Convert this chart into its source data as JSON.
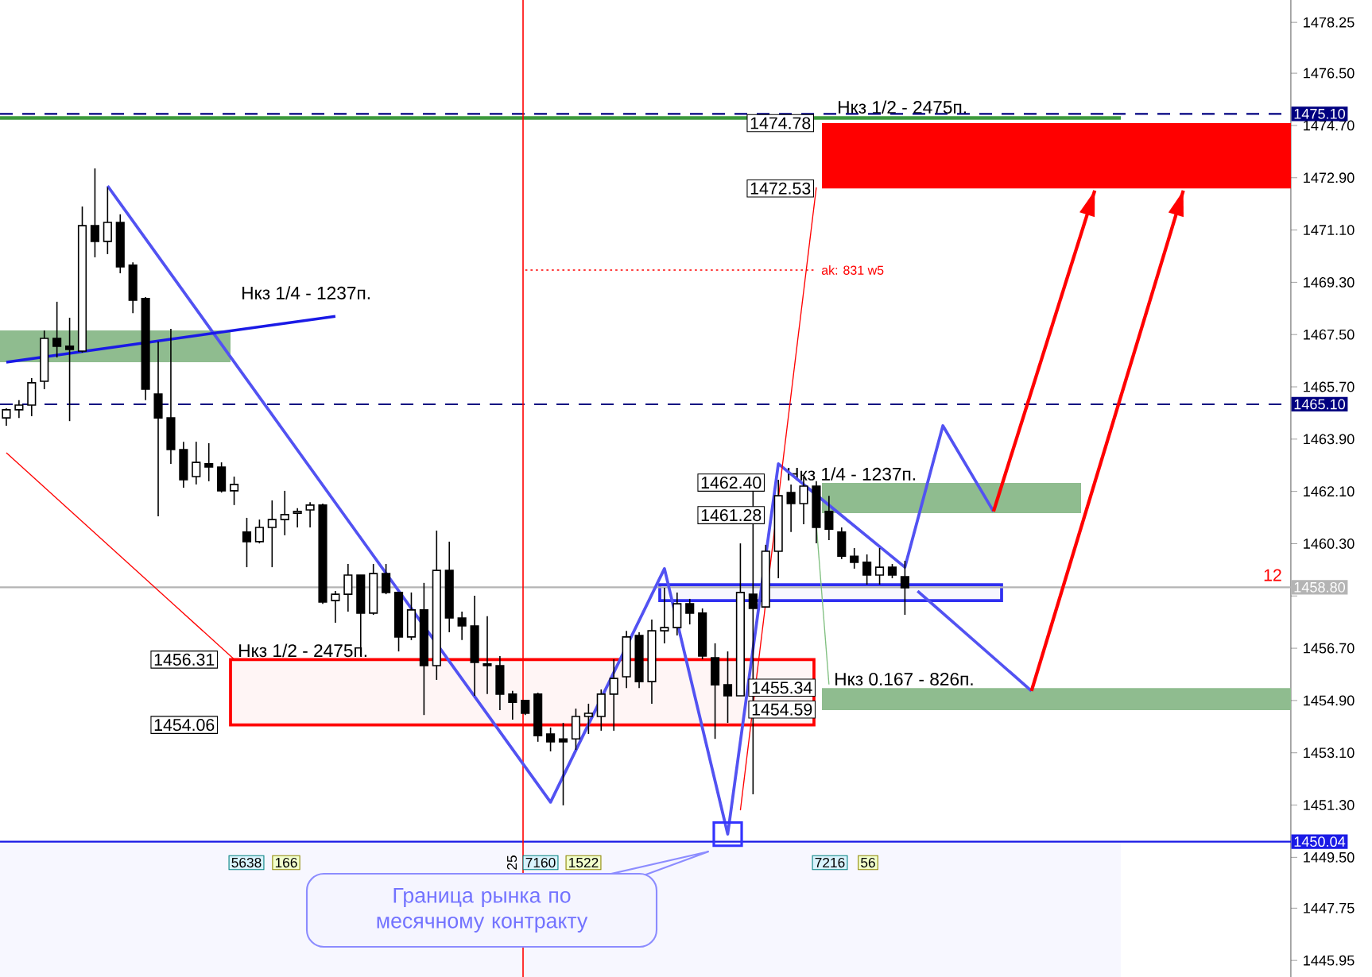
{
  "chart_data": {
    "type": "candlestick",
    "categories": [
      null,
      null,
      null,
      null,
      null,
      null,
      null,
      null,
      null,
      null,
      null,
      null,
      null,
      null,
      null,
      null,
      null,
      null,
      null,
      null,
      null,
      null,
      null,
      null,
      null,
      null,
      null,
      null,
      null,
      null,
      null,
      null,
      null,
      null,
      null,
      null,
      null,
      null,
      null,
      null,
      null,
      null,
      null,
      null,
      null,
      null,
      null,
      null,
      null,
      null,
      null,
      null,
      null,
      null,
      null,
      null,
      null,
      null,
      null,
      null,
      null,
      null,
      null,
      null,
      null,
      null,
      null,
      null,
      null,
      null,
      null,
      null,
      null,
      null,
      null,
      null,
      null,
      null,
      null,
      null,
      null,
      null,
      null,
      null,
      null,
      null,
      null,
      null,
      null,
      null,
      null,
      null,
      null,
      null,
      null,
      null,
      null,
      null,
      null,
      null,
      null,
      null
    ],
    "ohlc": [
      [
        1464.63,
        1464.96,
        1464.36,
        1464.91
      ],
      [
        1464.91,
        1465.24,
        1464.63,
        1465.07
      ],
      [
        1465.07,
        1466.0,
        1464.69,
        1465.84
      ],
      [
        1465.89,
        1467.64,
        1465.62,
        1467.37
      ],
      [
        1467.37,
        1468.63,
        1466.71,
        1467.1
      ],
      [
        1467.1,
        1468.08,
        1464.52,
        1466.99
      ],
      [
        1466.93,
        1471.91,
        1466.88,
        1471.25
      ],
      [
        1471.25,
        1473.22,
        1470.16,
        1470.71
      ],
      [
        1470.71,
        1472.57,
        1470.27,
        1471.36
      ],
      [
        1471.36,
        1471.64,
        1469.61,
        1469.83
      ],
      [
        1469.89,
        1469.99,
        1468.24,
        1468.68
      ],
      [
        1468.74,
        1468.79,
        1465.24,
        1465.62
      ],
      [
        1465.45,
        1467.26,
        1461.24,
        1464.63
      ],
      [
        1464.63,
        1467.7,
        1463.05,
        1463.54
      ],
      [
        1463.54,
        1463.81,
        1462.23,
        1462.5
      ],
      [
        1462.61,
        1463.81,
        1462.34,
        1463.1
      ],
      [
        1463.05,
        1463.76,
        1462.45,
        1462.94
      ],
      [
        1462.94,
        1463.1,
        1462.06,
        1462.12
      ],
      [
        1462.12,
        1462.61,
        1461.63,
        1462.34
      ],
      [
        1460.7,
        1461.19,
        1459.49,
        1460.37
      ],
      [
        1460.37,
        1461.13,
        1460.31,
        1460.86
      ],
      [
        1460.86,
        1461.79,
        1459.49,
        1461.13
      ],
      [
        1461.13,
        1462.12,
        1460.59,
        1461.3
      ],
      [
        1461.35,
        1461.52,
        1460.86,
        1461.41
      ],
      [
        1461.46,
        1461.73,
        1460.86,
        1461.63
      ],
      [
        1461.63,
        1461.68,
        1458.23,
        1458.29
      ],
      [
        1458.34,
        1458.67,
        1457.58,
        1458.56
      ],
      [
        1458.56,
        1459.6,
        1457.96,
        1459.22
      ],
      [
        1459.22,
        1459.22,
        1456.43,
        1457.91
      ],
      [
        1457.91,
        1459.6,
        1457.85,
        1459.27
      ],
      [
        1459.27,
        1459.6,
        1458.56,
        1458.62
      ],
      [
        1458.62,
        1458.62,
        1456.59,
        1457.09
      ],
      [
        1457.09,
        1458.62,
        1456.98,
        1458.02
      ],
      [
        1458.02,
        1458.95,
        1454.4,
        1456.1
      ],
      [
        1456.1,
        1460.75,
        1455.61,
        1459.38
      ],
      [
        1459.38,
        1460.37,
        1457.25,
        1457.74
      ],
      [
        1457.74,
        1457.96,
        1456.98,
        1457.47
      ],
      [
        1457.47,
        1458.51,
        1455.06,
        1456.21
      ],
      [
        1456.16,
        1457.8,
        1455.12,
        1456.1
      ],
      [
        1456.1,
        1456.43,
        1454.57,
        1455.12
      ],
      [
        1455.12,
        1455.23,
        1454.24,
        1454.84
      ],
      [
        1454.9,
        1454.9,
        1454.4,
        1454.46
      ],
      [
        1455.12,
        1455.17,
        1453.48,
        1453.69
      ],
      [
        1453.75,
        1453.97,
        1453.15,
        1453.48
      ],
      [
        1453.58,
        1454.13,
        1451.29,
        1453.48
      ],
      [
        1453.58,
        1454.62,
        1453.2,
        1454.35
      ],
      [
        1454.35,
        1454.79,
        1453.75,
        1454.46
      ],
      [
        1454.35,
        1455.28,
        1453.86,
        1455.12
      ],
      [
        1455.12,
        1456.32,
        1453.86,
        1455.66
      ],
      [
        1455.72,
        1457.3,
        1455.33,
        1457.09
      ],
      [
        1457.14,
        1457.25,
        1455.33,
        1455.55
      ],
      [
        1455.55,
        1457.69,
        1454.79,
        1457.3
      ],
      [
        1457.3,
        1458.78,
        1456.87,
        1457.41
      ],
      [
        1457.41,
        1458.62,
        1457.14,
        1458.23
      ],
      [
        1458.23,
        1458.4,
        1457.52,
        1457.91
      ],
      [
        1457.91,
        1458.07,
        1456.32,
        1456.43
      ],
      [
        1456.37,
        1456.87,
        1453.58,
        1455.44
      ],
      [
        1455.44,
        1456.59,
        1454.13,
        1455.06
      ],
      [
        1455.06,
        1460.31,
        1455.06,
        1458.62
      ],
      [
        1458.56,
        1462.34,
        1451.67,
        1458.07
      ],
      [
        1458.12,
        1460.26,
        1458.12,
        1460.04
      ],
      [
        1460.04,
        1462.5,
        1459.11,
        1461.95
      ],
      [
        1462.06,
        1462.34,
        1460.7,
        1461.68
      ],
      [
        1461.68,
        1462.61,
        1460.97,
        1462.28
      ],
      [
        1462.28,
        1462.45,
        1460.31,
        1460.86
      ],
      [
        1461.41,
        1461.95,
        1460.42,
        1460.8
      ],
      [
        1460.7,
        1460.86,
        1459.77,
        1459.87
      ],
      [
        1459.87,
        1460.15,
        1459.44,
        1459.66
      ],
      [
        1459.66,
        1459.93,
        1458.89,
        1459.22
      ],
      [
        1459.22,
        1460.15,
        1458.89,
        1459.49
      ],
      [
        1459.49,
        1459.6,
        1459.11,
        1459.22
      ],
      [
        1459.16,
        1459.71,
        1457.85,
        1458.78
      ],
      null,
      null,
      null,
      null,
      null,
      null,
      null,
      null,
      null,
      null,
      null,
      null,
      null,
      null,
      null,
      null,
      null,
      null,
      null,
      null,
      null,
      null,
      null,
      null,
      null,
      null,
      null,
      null,
      null,
      null
    ],
    "ylim": [
      1445.38,
      1479.02
    ],
    "yticks": [
      {
        "value": 1478.25,
        "label": "1478.25"
      },
      {
        "value": 1476.5,
        "label": "1476.50"
      },
      {
        "value": 1474.7,
        "label": "1474.70"
      },
      {
        "value": 1472.9,
        "label": "1472.90"
      },
      {
        "value": 1471.1,
        "label": "1471.10"
      },
      {
        "value": 1469.3,
        "label": "1469.30"
      },
      {
        "value": 1467.5,
        "label": "1467.50"
      },
      {
        "value": 1465.7,
        "label": "1465.70"
      },
      {
        "value": 1463.9,
        "label": "1463.90"
      },
      {
        "value": 1462.1,
        "label": "1462.10"
      },
      {
        "value": 1460.3,
        "label": "1460.30"
      },
      {
        "value": 1458.5,
        "label": null
      },
      {
        "value": 1456.7,
        "label": "1456.70"
      },
      {
        "value": 1454.9,
        "label": "1454.90"
      },
      {
        "value": 1453.1,
        "label": "1453.10"
      },
      {
        "value": 1451.3,
        "label": "1451.30"
      },
      {
        "value": 1449.5,
        "label": "1449.50"
      },
      {
        "value": 1447.75,
        "label": "1447.75"
      },
      {
        "value": 1445.95,
        "label": "1445.95"
      }
    ],
    "tick_labels": "y",
    "series": [
      {
        "type": "line",
        "color": "#5252f2",
        "values": [
          null,
          null,
          null,
          null,
          null,
          null,
          null,
          null,
          1472.62,
          null,
          null,
          null,
          null,
          null,
          null,
          null,
          null,
          null,
          null,
          null,
          null,
          null,
          null,
          null,
          null,
          null,
          null,
          null,
          null,
          null,
          null,
          null,
          null,
          null,
          null,
          null,
          null,
          null,
          null,
          null,
          null,
          null,
          null,
          1451.4,
          null,
          null,
          null,
          null,
          null,
          null,
          null,
          null,
          1459.44,
          null,
          null,
          null,
          null,
          1450.3,
          null,
          null,
          null,
          1463.05,
          null,
          null,
          null,
          null,
          null,
          null,
          null,
          null,
          null,
          1459.49,
          null,
          null,
          1464.36,
          null,
          null,
          null,
          1461.41,
          null,
          null,
          null,
          null,
          null,
          null,
          null,
          null,
          null,
          null,
          null,
          null,
          null,
          null,
          null,
          null,
          null,
          null,
          null,
          null,
          null,
          null,
          null
        ]
      },
      {
        "type": "line",
        "color": "#5252f2",
        "values": [
          null,
          null,
          null,
          null,
          null,
          null,
          null,
          null,
          null,
          null,
          null,
          null,
          null,
          null,
          null,
          null,
          null,
          null,
          null,
          null,
          null,
          null,
          null,
          null,
          null,
          null,
          null,
          null,
          null,
          null,
          null,
          null,
          null,
          null,
          null,
          null,
          null,
          null,
          null,
          null,
          null,
          null,
          null,
          null,
          null,
          null,
          null,
          null,
          null,
          null,
          null,
          null,
          null,
          null,
          null,
          null,
          null,
          null,
          null,
          null,
          null,
          null,
          null,
          null,
          null,
          null,
          null,
          null,
          null,
          null,
          null,
          null,
          1458.67,
          null,
          null,
          null,
          null,
          null,
          null,
          null,
          null,
          1455.23,
          null,
          null,
          null,
          null,
          null,
          null,
          null,
          null,
          null,
          null,
          null,
          null,
          null,
          null,
          null,
          null,
          null,
          null,
          null,
          null
        ]
      },
      {
        "type": "line",
        "color": "#1a1ae6",
        "values": [
          1466.55,
          null,
          null,
          null,
          null,
          null,
          null,
          null,
          null,
          null,
          null,
          null,
          null,
          null,
          null,
          null,
          null,
          null,
          null,
          null,
          null,
          null,
          null,
          null,
          null,
          null,
          1468.13,
          null,
          null,
          null,
          null,
          null,
          null,
          null,
          null,
          null,
          null,
          null,
          null,
          null,
          null,
          null,
          null,
          null,
          null,
          null,
          null,
          null,
          null,
          null,
          null,
          null,
          null,
          null,
          null,
          null,
          null,
          null,
          null,
          null,
          null,
          null,
          null,
          null,
          null,
          null,
          null,
          null,
          null,
          null,
          null,
          null,
          null,
          null,
          null,
          null,
          null,
          null,
          null,
          null,
          null,
          null,
          null,
          null,
          null,
          null,
          null,
          null,
          null,
          null,
          null,
          null,
          null,
          null,
          null,
          null,
          null,
          null,
          null,
          null,
          null,
          null
        ]
      },
      {
        "type": "line",
        "color": "#ff0000",
        "values": [
          1463.43,
          null,
          null,
          null,
          null,
          null,
          null,
          null,
          null,
          null,
          null,
          null,
          null,
          null,
          null,
          null,
          null,
          null,
          1456.32,
          null,
          null,
          null,
          null,
          null,
          null,
          null,
          null,
          null,
          null,
          null,
          null,
          null,
          null,
          null,
          null,
          null,
          null,
          null,
          null,
          null,
          null,
          null,
          null,
          null,
          null,
          null,
          null,
          null,
          null,
          null,
          null,
          null,
          null,
          null,
          null,
          null,
          null,
          null,
          null,
          null,
          null,
          null,
          null,
          null,
          null,
          null,
          null,
          null,
          null,
          null,
          null,
          null,
          null,
          null,
          null,
          null,
          null,
          null,
          null,
          null,
          null,
          null,
          null,
          null,
          null,
          null,
          null,
          null,
          null,
          null,
          null,
          null,
          null,
          null,
          null,
          null,
          null,
          null,
          null,
          null,
          null,
          null
        ]
      },
      {
        "type": "line",
        "color": "#ff0000",
        "values": [
          null,
          null,
          null,
          null,
          null,
          null,
          null,
          null,
          null,
          null,
          null,
          null,
          null,
          null,
          null,
          null,
          null,
          null,
          null,
          null,
          null,
          null,
          null,
          null,
          null,
          null,
          null,
          null,
          null,
          null,
          null,
          null,
          null,
          null,
          null,
          null,
          null,
          null,
          null,
          null,
          null,
          null,
          null,
          null,
          null,
          null,
          null,
          null,
          null,
          null,
          null,
          null,
          null,
          null,
          null,
          null,
          null,
          null,
          1451.12,
          null,
          null,
          null,
          null,
          null,
          1472.57,
          null,
          null,
          null,
          null,
          null,
          null,
          null,
          null,
          null,
          null,
          null,
          null,
          null,
          null,
          null,
          null,
          null,
          null,
          null,
          null,
          null,
          null,
          null,
          null,
          null,
          null,
          null,
          null,
          null,
          null,
          null,
          null,
          null,
          null,
          null,
          null,
          null
        ]
      },
      {
        "type": "line",
        "color": "#80c080",
        "values": [
          null,
          null,
          null,
          null,
          null,
          null,
          null,
          null,
          null,
          null,
          null,
          null,
          null,
          null,
          null,
          null,
          null,
          null,
          null,
          null,
          null,
          null,
          null,
          null,
          null,
          null,
          null,
          null,
          null,
          null,
          null,
          null,
          null,
          null,
          null,
          null,
          null,
          null,
          null,
          null,
          null,
          null,
          null,
          null,
          null,
          null,
          null,
          null,
          null,
          null,
          null,
          null,
          null,
          null,
          null,
          null,
          null,
          null,
          null,
          null,
          null,
          null,
          null,
          null,
          1460.97,
          1455.45,
          null,
          null,
          null,
          null,
          null,
          null,
          null,
          null,
          null,
          null,
          null,
          null,
          null,
          null,
          null,
          null,
          null,
          null,
          null,
          null,
          null,
          null,
          null,
          null,
          null,
          null,
          null,
          null,
          null,
          null,
          null,
          null,
          null,
          null,
          null,
          null
        ]
      },
      {
        "type": "line",
        "color": "#ff0000",
        "line_style": "dotted",
        "values": [
          null,
          null,
          null,
          null,
          null,
          null,
          null,
          null,
          null,
          null,
          null,
          null,
          null,
          null,
          null,
          null,
          null,
          null,
          null,
          null,
          null,
          null,
          null,
          null,
          null,
          null,
          null,
          null,
          null,
          null,
          null,
          null,
          null,
          null,
          null,
          null,
          null,
          null,
          null,
          null,
          null,
          1469.72,
          null,
          null,
          null,
          null,
          null,
          null,
          null,
          null,
          null,
          null,
          null,
          null,
          null,
          null,
          null,
          null,
          null,
          null,
          null,
          null,
          null,
          null,
          1469.72,
          null,
          null,
          null,
          null,
          null,
          null,
          null,
          null,
          null,
          null,
          null,
          null,
          null,
          null,
          null,
          null,
          null,
          null,
          null,
          null,
          null,
          null,
          null,
          null,
          null,
          null,
          null,
          null,
          null,
          null,
          null,
          null,
          null,
          null,
          null,
          null,
          null
        ]
      },
      {
        "type": "line",
        "color": "#ff0000",
        "values": [
          null,
          null,
          null,
          null,
          null,
          null,
          null,
          null,
          null,
          null,
          null,
          null,
          null,
          null,
          null,
          null,
          null,
          null,
          null,
          null,
          null,
          null,
          null,
          null,
          null,
          null,
          null,
          null,
          null,
          null,
          null,
          null,
          null,
          null,
          null,
          null,
          null,
          null,
          null,
          null,
          null,
          null,
          null,
          null,
          null,
          null,
          null,
          null,
          null,
          null,
          null,
          null,
          null,
          null,
          null,
          null,
          null,
          null,
          null,
          null,
          null,
          null,
          null,
          null,
          null,
          null,
          null,
          null,
          null,
          null,
          null,
          null,
          null,
          null,
          null,
          null,
          null,
          null,
          1461.41,
          null,
          null,
          null,
          null,
          null,
          null,
          null,
          1472.46,
          null,
          null,
          null,
          null,
          null,
          null,
          null,
          null,
          null,
          null,
          null,
          null,
          null,
          null,
          null
        ]
      },
      {
        "type": "line",
        "color": "#ff0000",
        "values": [
          null,
          null,
          null,
          null,
          null,
          null,
          null,
          null,
          null,
          null,
          null,
          null,
          null,
          null,
          null,
          null,
          null,
          null,
          null,
          null,
          null,
          null,
          null,
          null,
          null,
          null,
          null,
          null,
          null,
          null,
          null,
          null,
          null,
          null,
          null,
          null,
          null,
          null,
          null,
          null,
          null,
          null,
          null,
          null,
          null,
          null,
          null,
          null,
          null,
          null,
          null,
          null,
          null,
          null,
          null,
          null,
          null,
          null,
          null,
          null,
          null,
          null,
          null,
          null,
          null,
          null,
          null,
          null,
          null,
          null,
          null,
          null,
          null,
          null,
          null,
          null,
          null,
          null,
          null,
          null,
          null,
          1455.23,
          null,
          null,
          null,
          null,
          null,
          null,
          null,
          null,
          null,
          null,
          null,
          1472.46,
          null,
          null,
          null,
          null,
          null,
          null,
          null,
          null
        ]
      }
    ],
    "bands": [
      {
        "axis": "y",
        "from": 1466.55,
        "to": 1467.64,
        "label": "Нкз 1/4 - 1237п.",
        "color": "#8fbc8f"
      },
      {
        "axis": "y",
        "from": 1461.35,
        "to": 1462.39,
        "label": "Нкз 1/4 - 1237п.",
        "color": "#8fbc8f"
      },
      {
        "axis": "y",
        "from": 1454.57,
        "to": 1455.33,
        "label": "Нкз 0.167 - 826п.",
        "color": "#8fbc8f"
      },
      {
        "axis": "y",
        "from": 1474.9,
        "to": 1475.02,
        "label": "Нкз 1/2 - 2475п.",
        "color": "#3c9a3c"
      },
      {
        "axis": "y",
        "from": 1472.53,
        "to": 1474.78,
        "color": "#ff0000"
      },
      {
        "axis": "y",
        "from": 1454.06,
        "to": 1456.31,
        "label": "Нкз 1/2 - 2475п.",
        "color": "#ff0000"
      },
      {
        "axis": "y",
        "from": 1458.34,
        "to": 1458.89,
        "color": "#3030f0"
      }
    ],
    "ref_lines": [
      {
        "axis": "y",
        "value": 1475.1,
        "label": "1475.10",
        "color": "#000080",
        "line_style": "dashed"
      },
      {
        "axis": "y",
        "value": 1465.1,
        "label": "1465.10",
        "color": "#000080",
        "line_style": "dashed"
      },
      {
        "axis": "y",
        "value": 1458.8,
        "label": "1458.80",
        "color": "#b4b4b4",
        "line_style": "solid"
      },
      {
        "axis": "y",
        "value": 1450.04,
        "label": "1450.04",
        "color": "#1a1ae6",
        "line_style": "solid"
      }
    ],
    "annotations": [
      "1474.78",
      "1472.53",
      "1462.40",
      "1461.28",
      "1455.34",
      "1454.59",
      "1456.31",
      "1454.06",
      "ak: 831 w5",
      "12",
      "5638",
      "166",
      "25",
      "7160",
      "1522",
      "7216",
      "56",
      "Граница рынка по месячному контракту"
    ]
  }
}
